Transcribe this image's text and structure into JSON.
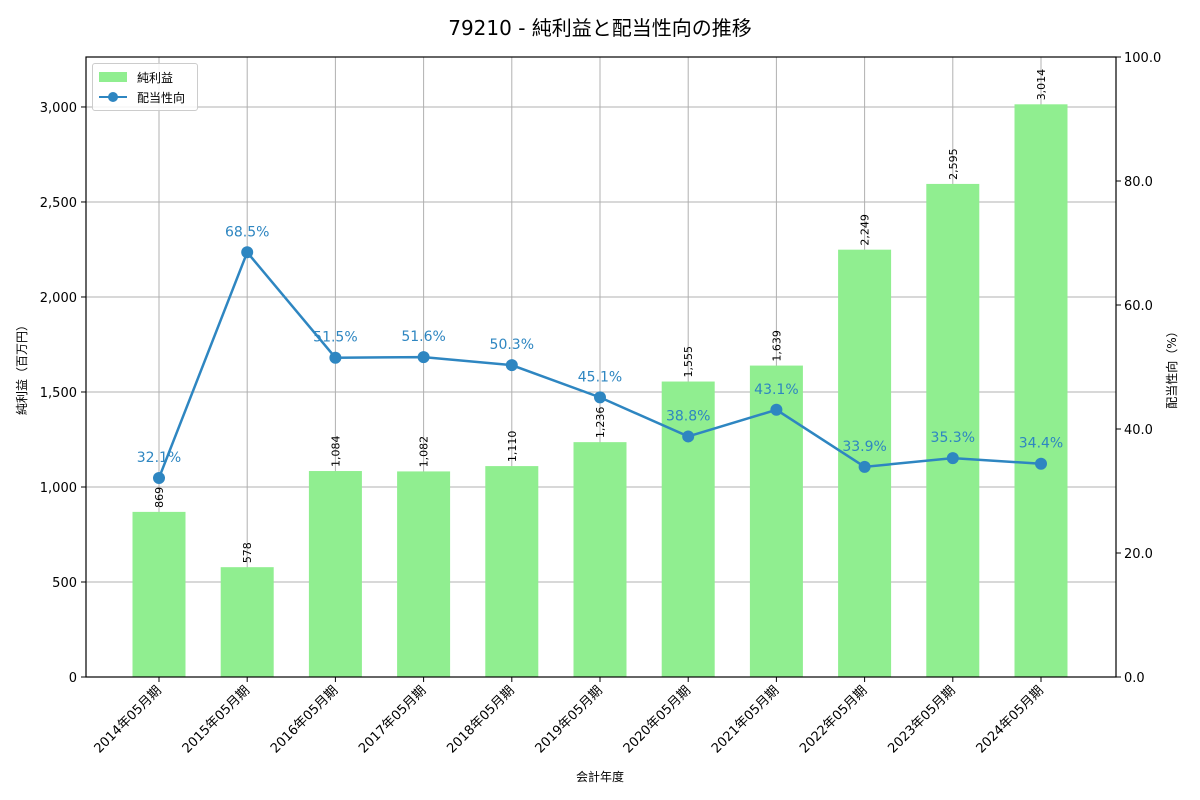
{
  "chart_data": {
    "type": "bar+line",
    "title": "79210 - 純利益と配当性向の推移",
    "xlabel": "会計年度",
    "ylabel": "純利益（百万円）",
    "ylabel_right": "配当性向（%）",
    "categories": [
      "2014年05月期",
      "2015年05月期",
      "2016年05月期",
      "2017年05月期",
      "2018年05月期",
      "2019年05月期",
      "2020年05月期",
      "2021年05月期",
      "2022年05月期",
      "2023年05月期",
      "2024年05月期"
    ],
    "series": [
      {
        "name": "純利益",
        "type": "bar",
        "axis": "left",
        "color": "#90ee90",
        "values": [
          869,
          578,
          1084,
          1082,
          1110,
          1236,
          1555,
          1639,
          2249,
          2595,
          3014
        ],
        "labels": [
          "869",
          "578",
          "1,084",
          "1,082",
          "1,110",
          "1,236",
          "1,555",
          "1,639",
          "2,249",
          "2,595",
          "3,014"
        ]
      },
      {
        "name": "配当性向",
        "type": "line",
        "axis": "right",
        "color": "#2e86c1",
        "values": [
          32.1,
          68.5,
          51.5,
          51.6,
          50.3,
          45.1,
          38.8,
          43.1,
          33.9,
          35.3,
          34.4
        ],
        "labels": [
          "32.1%",
          "68.5%",
          "51.5%",
          "51.6%",
          "50.3%",
          "45.1%",
          "38.8%",
          "43.1%",
          "33.9%",
          "35.3%",
          "34.4%"
        ]
      }
    ],
    "ylim": [
      0,
      3263
    ],
    "yticks": [
      0,
      500,
      1000,
      1500,
      2000,
      2500,
      3000
    ],
    "ytick_labels": [
      "0",
      "500",
      "1,000",
      "1,500",
      "2,000",
      "2,500",
      "3,000"
    ],
    "ylim_right": [
      0,
      100
    ],
    "yticks_right": [
      0,
      20,
      40,
      60,
      80,
      100
    ],
    "ytick_labels_right": [
      "0.0",
      "20.0",
      "40.0",
      "60.0",
      "80.0",
      "100.0"
    ],
    "grid": true,
    "legend_position": "upper left"
  }
}
